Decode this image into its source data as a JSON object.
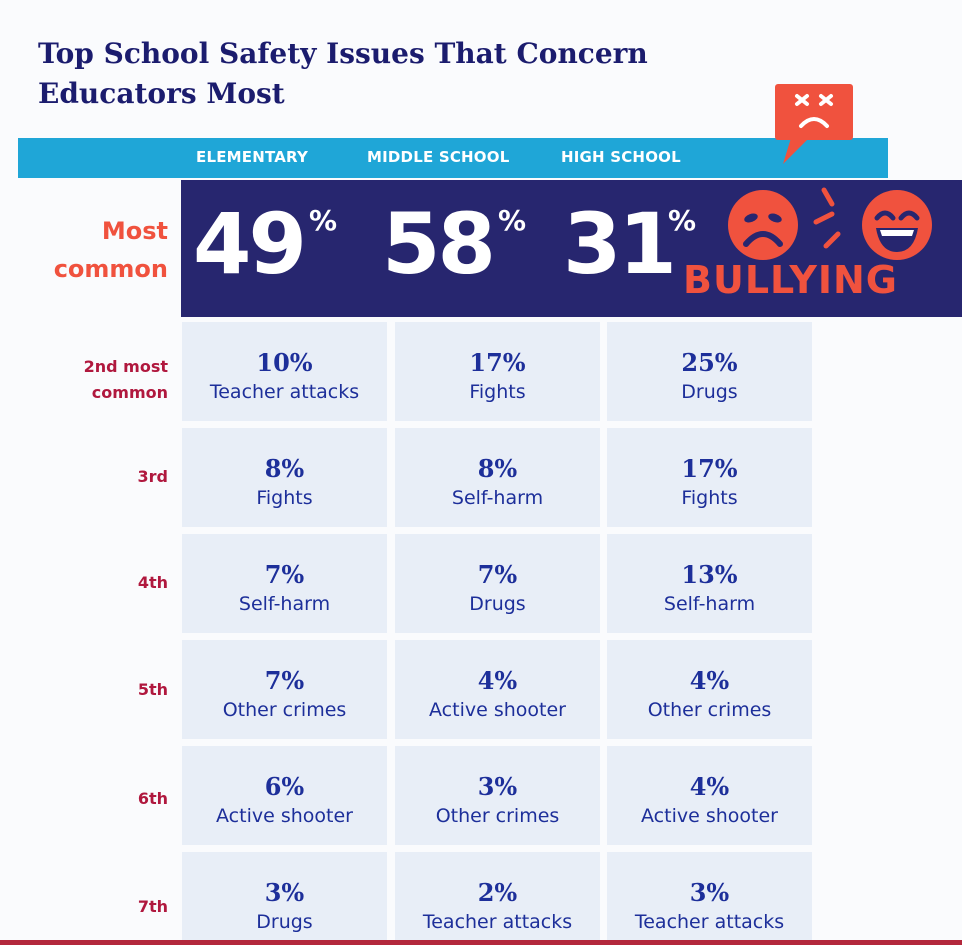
{
  "title": "Top School Safety Issues That Concern Educators Most",
  "columns": [
    "ELEMENTARY",
    "MIDDLE SCHOOL",
    "HIGH SCHOOL"
  ],
  "most_common": {
    "label_line1": "Most",
    "label_line2": "common",
    "values": [
      "49",
      "58",
      "31"
    ],
    "pct_symbol": "%",
    "topic": "BULLYING"
  },
  "colors": {
    "navy": "#27266f",
    "header_blue": "#1fa6d7",
    "accent_red": "#f0523e",
    "rank_red": "#b0183e",
    "cell_bg": "#e8eef7",
    "cell_text": "#1d2f9a"
  },
  "icons": [
    "angry-speech-bubble-icon",
    "sad-face-icon",
    "laughing-face-icon"
  ],
  "chart_data": {
    "type": "table",
    "title": "Top School Safety Issues That Concern Educators Most",
    "columns": [
      "ELEMENTARY",
      "MIDDLE SCHOOL",
      "HIGH SCHOOL"
    ],
    "rows": [
      {
        "rank": "Most common",
        "cells": [
          {
            "value": "49%",
            "issue": "Bullying"
          },
          {
            "value": "58%",
            "issue": "Bullying"
          },
          {
            "value": "31%",
            "issue": "Bullying"
          }
        ]
      },
      {
        "rank": "2nd most common",
        "rank_line1": "2nd most",
        "rank_line2": "common",
        "cells": [
          {
            "value": "10%",
            "issue": "Teacher attacks"
          },
          {
            "value": "17%",
            "issue": "Fights"
          },
          {
            "value": "25%",
            "issue": "Drugs"
          }
        ]
      },
      {
        "rank": "3rd",
        "cells": [
          {
            "value": "8%",
            "issue": "Fights"
          },
          {
            "value": "8%",
            "issue": "Self-harm"
          },
          {
            "value": "17%",
            "issue": "Fights"
          }
        ]
      },
      {
        "rank": "4th",
        "cells": [
          {
            "value": "7%",
            "issue": "Self-harm"
          },
          {
            "value": "7%",
            "issue": "Drugs"
          },
          {
            "value": "13%",
            "issue": "Self-harm"
          }
        ]
      },
      {
        "rank": "5th",
        "cells": [
          {
            "value": "7%",
            "issue": "Other crimes"
          },
          {
            "value": "4%",
            "issue": "Active shooter"
          },
          {
            "value": "4%",
            "issue": "Other crimes"
          }
        ]
      },
      {
        "rank": "6th",
        "cells": [
          {
            "value": "6%",
            "issue": "Active shooter"
          },
          {
            "value": "3%",
            "issue": "Other crimes"
          },
          {
            "value": "4%",
            "issue": "Active shooter"
          }
        ]
      },
      {
        "rank": "7th",
        "cells": [
          {
            "value": "3%",
            "issue": "Drugs"
          },
          {
            "value": "2%",
            "issue": "Teacher attacks"
          },
          {
            "value": "3%",
            "issue": "Teacher attacks"
          }
        ]
      }
    ]
  }
}
